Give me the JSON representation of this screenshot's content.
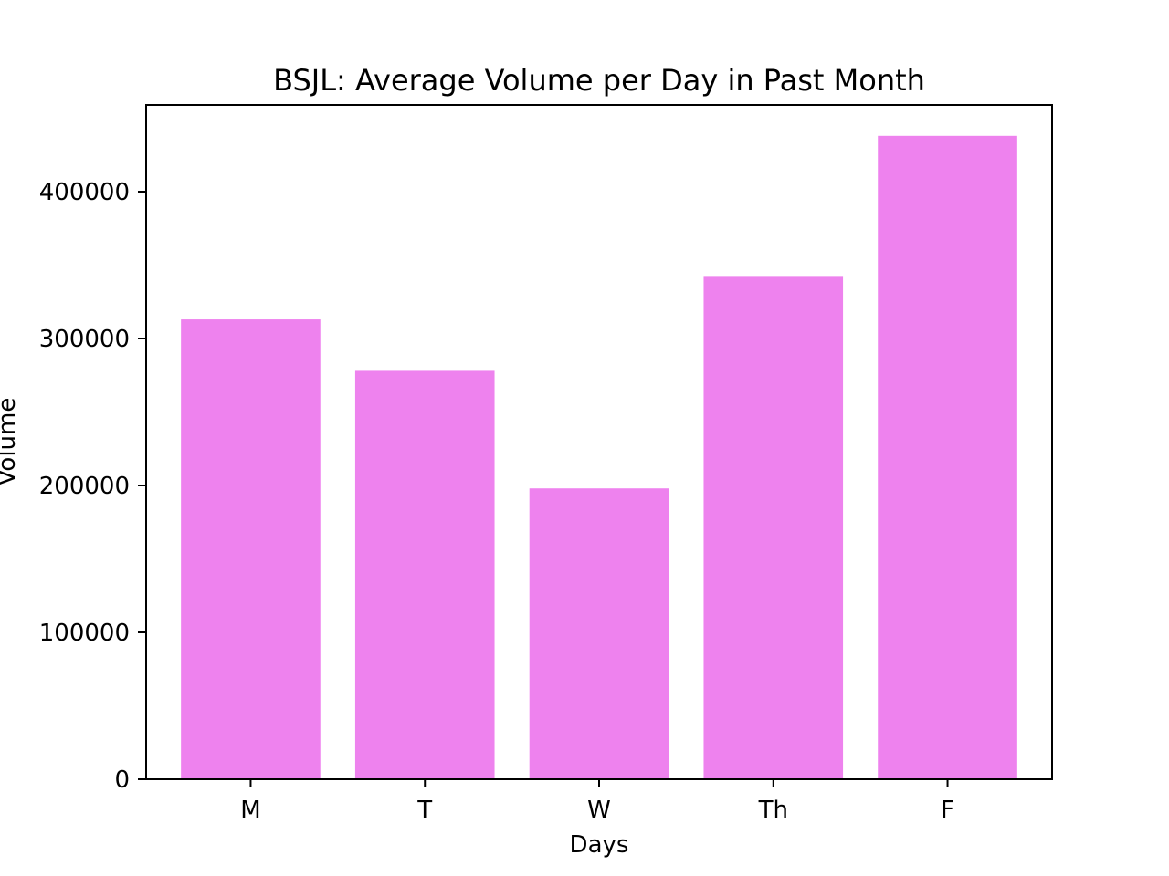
{
  "chart_data": {
    "type": "bar",
    "title": "BSJL: Average Volume per Day in Past Month",
    "xlabel": "Days",
    "ylabel": "Volume",
    "categories": [
      "M",
      "T",
      "W",
      "Th",
      "F"
    ],
    "values": [
      313000,
      278000,
      198000,
      342000,
      438000
    ],
    "ylim": [
      0,
      459000
    ],
    "yticks": [
      0,
      100000,
      200000,
      300000,
      400000
    ],
    "ytick_labels": [
      "0",
      "100000",
      "200000",
      "300000",
      "400000"
    ],
    "bar_color": "#ee82ee",
    "grid": false,
    "legend": "none"
  }
}
